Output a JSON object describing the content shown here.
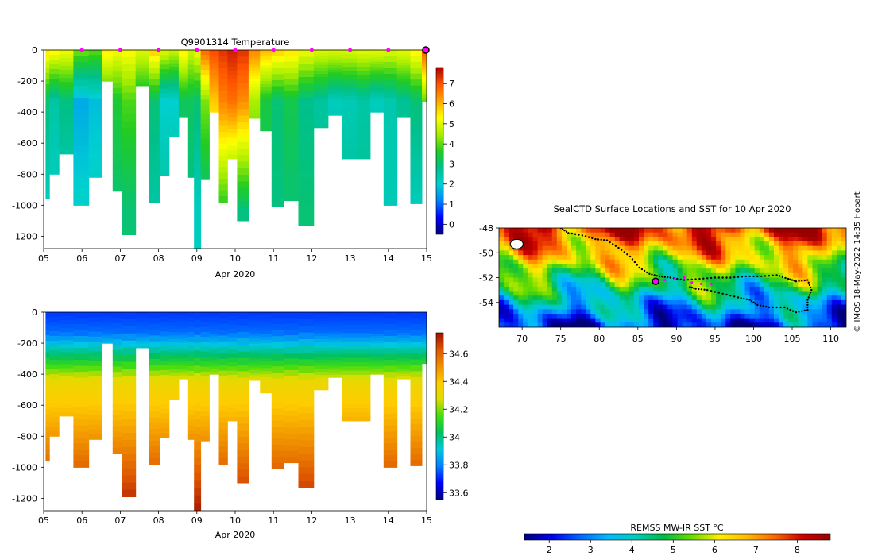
{
  "colors": {
    "temperature_scale": [
      "#00007f",
      "#0000ff",
      "#007fff",
      "#00d0d0",
      "#00c08a",
      "#22cc22",
      "#aaee00",
      "#ffff00",
      "#ffa500",
      "#ff5500",
      "#b00000"
    ],
    "salinity_scale": [
      "#00007f",
      "#0000ff",
      "#007fff",
      "#00c8e0",
      "#00c060",
      "#40dd10",
      "#dddd00",
      "#ffcc00",
      "#f09000",
      "#dd5500",
      "#a01000"
    ],
    "sst_scale": [
      "#00007f",
      "#0000ee",
      "#0066ff",
      "#00bbff",
      "#00ccbb",
      "#00bb44",
      "#66dd00",
      "#ffee00",
      "#ffbb00",
      "#ff6600",
      "#cc0000",
      "#990000"
    ],
    "profile_marker": "#ff00ff",
    "track": "#000000"
  },
  "chart_data": [
    {
      "type": "heatmap",
      "title": "Q9901314  Temperature",
      "xlabel": "Apr 2020",
      "x_tick_labels": [
        "05",
        "06",
        "07",
        "08",
        "09",
        "10",
        "11",
        "12",
        "13",
        "14",
        "15"
      ],
      "x_range": [
        5,
        15
      ],
      "y_tick_labels": [
        "0",
        "-200",
        "-400",
        "-600",
        "-800",
        "-1000",
        "-1200"
      ],
      "ylim": [
        -1280,
        0
      ],
      "colorbar_ticks": [
        "0",
        "1",
        "2",
        "3",
        "4",
        "5",
        "6",
        "7"
      ],
      "colorbar_range": [
        -0.5,
        7.8
      ],
      "profile_markers_day": [
        6,
        7,
        8,
        9,
        10,
        11,
        12,
        13,
        14,
        15
      ],
      "profiles": [
        {
          "day": 5.05,
          "depth": -960,
          "surface": 5.6,
          "mid": 3.0,
          "deep": 2.1
        },
        {
          "day": 5.25,
          "depth": -800,
          "surface": 5.4,
          "mid": 2.5,
          "deep": 2.1
        },
        {
          "day": 5.55,
          "depth": -670,
          "surface": 5.2,
          "mid": 2.9,
          "deep": 2.2
        },
        {
          "day": 6.0,
          "depth": -1000,
          "surface": 4.2,
          "mid": 1.6,
          "deep": 2.1
        },
        {
          "day": 6.35,
          "depth": -820,
          "surface": 4.0,
          "mid": 1.8,
          "deep": 2.2
        },
        {
          "day": 6.7,
          "depth": -200,
          "surface": 5.5,
          "mid": 3.4,
          "deep": 3.0
        },
        {
          "day": 6.9,
          "depth": -910,
          "surface": 5.2,
          "mid": 3.5,
          "deep": 3.0
        },
        {
          "day": 7.2,
          "depth": -1190,
          "surface": 5.3,
          "mid": 3.9,
          "deep": 3.0
        },
        {
          "day": 7.6,
          "depth": -230,
          "surface": 5.0,
          "mid": 3.1,
          "deep": 2.8
        },
        {
          "day": 7.9,
          "depth": -980,
          "surface": 5.8,
          "mid": 3.0,
          "deep": 2.5
        },
        {
          "day": 8.15,
          "depth": -810,
          "surface": 5.0,
          "mid": 2.0,
          "deep": 2.6
        },
        {
          "day": 8.4,
          "depth": -560,
          "surface": 4.8,
          "mid": 2.0,
          "deep": 2.7
        },
        {
          "day": 8.65,
          "depth": -430,
          "surface": 5.5,
          "mid": 3.2,
          "deep": 2.8
        },
        {
          "day": 8.85,
          "depth": -820,
          "surface": 4.8,
          "mid": 3.2,
          "deep": 2.8
        },
        {
          "day": 9.0,
          "depth": -1280,
          "surface": 5.2,
          "mid": 3.0,
          "deep": 2.2
        },
        {
          "day": 9.2,
          "depth": -830,
          "surface": 6.8,
          "mid": 4.2,
          "deep": 2.8
        },
        {
          "day": 9.45,
          "depth": -400,
          "surface": 7.1,
          "mid": 5.8,
          "deep": 3.8
        },
        {
          "day": 9.7,
          "depth": -980,
          "surface": 7.3,
          "mid": 6.5,
          "deep": 3.5
        },
        {
          "day": 9.9,
          "depth": -700,
          "surface": 7.5,
          "mid": 6.7,
          "deep": 3.0
        },
        {
          "day": 10.2,
          "depth": -1100,
          "surface": 7.3,
          "mid": 6.4,
          "deep": 2.9
        },
        {
          "day": 10.5,
          "depth": -440,
          "surface": 6.5,
          "mid": 4.5,
          "deep": 3.2
        },
        {
          "day": 10.8,
          "depth": -520,
          "surface": 6.0,
          "mid": 3.4,
          "deep": 3.1
        },
        {
          "day": 11.1,
          "depth": -1010,
          "surface": 5.8,
          "mid": 3.0,
          "deep": 2.9
        },
        {
          "day": 11.45,
          "depth": -970,
          "surface": 5.6,
          "mid": 3.3,
          "deep": 3.0
        },
        {
          "day": 11.85,
          "depth": -1130,
          "surface": 5.2,
          "mid": 2.8,
          "deep": 3.0
        },
        {
          "day": 12.25,
          "depth": -500,
          "surface": 5.0,
          "mid": 2.6,
          "deep": 2.8
        },
        {
          "day": 12.6,
          "depth": -420,
          "surface": 5.0,
          "mid": 2.2,
          "deep": 2.7
        },
        {
          "day": 13.0,
          "depth": -700,
          "surface": 5.0,
          "mid": 2.3,
          "deep": 2.7
        },
        {
          "day": 13.35,
          "depth": -700,
          "surface": 5.1,
          "mid": 2.5,
          "deep": 2.7
        },
        {
          "day": 13.7,
          "depth": -400,
          "surface": 5.1,
          "mid": 2.2,
          "deep": 2.8
        },
        {
          "day": 14.05,
          "depth": -1000,
          "surface": 5.0,
          "mid": 2.4,
          "deep": 2.3
        },
        {
          "day": 14.4,
          "depth": -430,
          "surface": 5.1,
          "mid": 2.7,
          "deep": 2.8
        },
        {
          "day": 14.75,
          "depth": -990,
          "surface": 5.5,
          "mid": 3.0,
          "deep": 2.2
        },
        {
          "day": 15.0,
          "depth": -330,
          "surface": 7.0,
          "mid": 4.0,
          "deep": 3.0
        }
      ]
    },
    {
      "type": "heatmap",
      "title": "",
      "xlabel": "Apr 2020",
      "x_tick_labels": [
        "05",
        "06",
        "07",
        "08",
        "09",
        "10",
        "11",
        "12",
        "13",
        "14",
        "15"
      ],
      "x_range": [
        5,
        15
      ],
      "y_tick_labels": [
        "0",
        "-200",
        "-400",
        "-600",
        "-800",
        "-1000",
        "-1200"
      ],
      "ylim": [
        -1280,
        0
      ],
      "colorbar_ticks": [
        "33.6",
        "33.8",
        "34",
        "34.2",
        "34.4",
        "34.6"
      ],
      "colorbar_range": [
        33.55,
        34.75
      ],
      "note": "salinity; same profile depths as temperature panel, fresh surface grading to saline at depth"
    },
    {
      "type": "heatmap",
      "title": "SealCTD Surface Locations and SST for 10 Apr 2020",
      "xlabel": "",
      "x_tick_labels": [
        "70",
        "75",
        "80",
        "85",
        "90",
        "95",
        "100",
        "105",
        "110"
      ],
      "x_range": [
        67,
        112
      ],
      "y_tick_labels": [
        "-48",
        "-50",
        "-52",
        "-54"
      ],
      "ylim": [
        -56,
        -48
      ],
      "colorbar_label": "REMSS MW-IR SST °C",
      "colorbar_ticks": [
        "2",
        "3",
        "4",
        "5",
        "6",
        "7",
        "8"
      ],
      "colorbar_range": [
        1.4,
        8.8
      ],
      "current_location": {
        "lon": 87.3,
        "lat": -52.3
      },
      "track": [
        [
          75.0,
          -48.0
        ],
        [
          76.0,
          -48.4
        ],
        [
          77.8,
          -48.6
        ],
        [
          79.5,
          -48.9
        ],
        [
          81.0,
          -49.0
        ],
        [
          82.5,
          -49.6
        ],
        [
          84.0,
          -50.3
        ],
        [
          85.2,
          -51.2
        ],
        [
          86.5,
          -51.7
        ],
        [
          87.8,
          -51.9
        ],
        [
          89.2,
          -52.0
        ],
        [
          91.0,
          -52.2
        ],
        [
          93.0,
          -52.1
        ],
        [
          95.0,
          -52.0
        ],
        [
          97.0,
          -52.0
        ],
        [
          99.0,
          -51.9
        ],
        [
          101.0,
          -51.9
        ],
        [
          103.0,
          -51.8
        ],
        [
          104.5,
          -52.1
        ],
        [
          105.5,
          -52.3
        ],
        [
          107.0,
          -52.2
        ],
        [
          107.5,
          -53.0
        ],
        [
          107.0,
          -53.8
        ],
        [
          107.0,
          -54.6
        ],
        [
          105.5,
          -54.8
        ],
        [
          104.0,
          -54.4
        ],
        [
          102.0,
          -54.4
        ],
        [
          100.5,
          -54.2
        ],
        [
          99.5,
          -53.8
        ],
        [
          98.0,
          -53.6
        ],
        [
          96.0,
          -53.3
        ],
        [
          94.0,
          -53.0
        ],
        [
          92.5,
          -52.9
        ],
        [
          91.5,
          -52.7
        ]
      ],
      "recent_profiles": [
        [
          88.5,
          -52.2
        ],
        [
          89.8,
          -52.1
        ],
        [
          91.0,
          -52.0
        ],
        [
          92.0,
          -52.4
        ],
        [
          93.2,
          -52.5
        ],
        [
          94.5,
          -52.5
        ]
      ],
      "land": [
        {
          "lon": 69.3,
          "lat": -49.3,
          "label": ""
        }
      ]
    }
  ],
  "watermark": "© IMOS 18-May-2022 14:35 Hobart"
}
